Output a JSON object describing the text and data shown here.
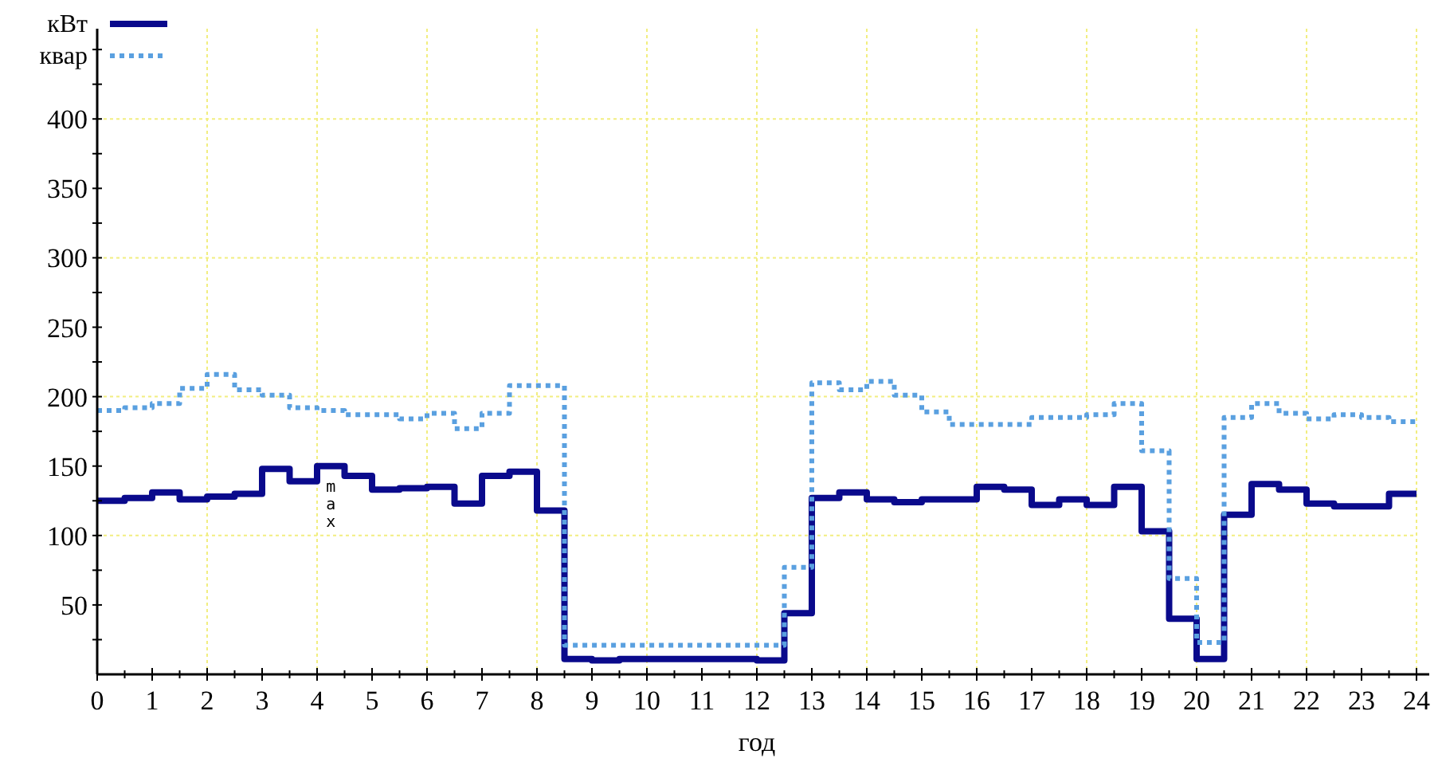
{
  "chart_data": {
    "type": "step",
    "xlabel": "год",
    "legend": "top left",
    "grid": true,
    "xlim": [
      0,
      24
    ],
    "ylim": [
      0,
      465
    ],
    "xticks": [
      0,
      {
        "value": 0.5,
        "label": null
      },
      1,
      {
        "value": 1.5,
        "label": null
      },
      2,
      {
        "value": 2.5,
        "label": null
      },
      3,
      {
        "value": 3.5,
        "label": null
      },
      4,
      {
        "value": 4.5,
        "label": null
      },
      5,
      {
        "value": 5.5,
        "label": null
      },
      6,
      {
        "value": 6.5,
        "label": null
      },
      7,
      {
        "value": 7.5,
        "label": null
      },
      8,
      {
        "value": 8.5,
        "label": null
      },
      9,
      {
        "value": 9.5,
        "label": null
      },
      10,
      {
        "value": 10.5,
        "label": null
      },
      11,
      {
        "value": 11.5,
        "label": null
      },
      12,
      {
        "value": 12.5,
        "label": null
      },
      13,
      {
        "value": 13.5,
        "label": null
      },
      14,
      {
        "value": 14.5,
        "label": null
      },
      15,
      {
        "value": 15.5,
        "label": null
      },
      16,
      {
        "value": 16.5,
        "label": null
      },
      17,
      {
        "value": 17.5,
        "label": null
      },
      18,
      {
        "value": 18.5,
        "label": null
      },
      19,
      {
        "value": 19.5,
        "label": null
      },
      20,
      {
        "value": 20.5,
        "label": null
      },
      21,
      {
        "value": 21.5,
        "label": null
      },
      22,
      {
        "value": 22.5,
        "label": null
      },
      23,
      {
        "value": 23.5,
        "label": null
      },
      24
    ],
    "yticks": [
      {
        "value": 25,
        "label": null
      },
      50,
      {
        "value": 75,
        "label": null
      },
      100,
      {
        "value": 125,
        "label": null
      },
      150,
      {
        "value": 175,
        "label": null
      },
      200,
      {
        "value": 225,
        "label": null
      },
      250,
      {
        "value": 275,
        "label": null
      },
      300,
      {
        "value": 325,
        "label": null
      },
      350,
      {
        "value": 375,
        "label": null
      },
      400,
      {
        "value": 425,
        "label": null
      },
      {
        "value": 450,
        "label": null
      }
    ],
    "x": [
      0,
      0.5,
      1,
      1.5,
      2,
      2.5,
      3,
      3.5,
      4,
      4.5,
      5,
      5.5,
      6,
      6.5,
      7,
      7.5,
      8,
      8.5,
      9,
      9.5,
      10,
      10.5,
      11,
      11.5,
      12,
      12.5,
      13,
      13.5,
      14,
      14.5,
      15,
      15.5,
      16,
      16.5,
      17,
      17.5,
      18,
      18.5,
      19,
      19.5,
      20,
      20.5,
      21,
      21.5,
      22,
      22.5,
      23,
      23.5,
      24
    ],
    "series": [
      {
        "name": "кВт",
        "color": "#0a0a8c",
        "line_style": "solid",
        "values": [
          125,
          127,
          131,
          126,
          128,
          130,
          148,
          139,
          150,
          143,
          133,
          134,
          135,
          123,
          143,
          146,
          118,
          11,
          10,
          11,
          11,
          11,
          11,
          11,
          10,
          44,
          127,
          131,
          126,
          124,
          126,
          126,
          135,
          133,
          122,
          126,
          122,
          135,
          103,
          40,
          11,
          115,
          137,
          133,
          123,
          121,
          121,
          130,
          130
        ]
      },
      {
        "name": "квар",
        "color": "#5aa0e0",
        "line_style": "dotted",
        "values": [
          190,
          192,
          195,
          206,
          216,
          205,
          201,
          192,
          190,
          187,
          187,
          184,
          188,
          177,
          188,
          208,
          208,
          21,
          21,
          21,
          21,
          21,
          21,
          21,
          21,
          77,
          210,
          205,
          211,
          201,
          189,
          180,
          180,
          180,
          185,
          185,
          187,
          195,
          161,
          69,
          23,
          185,
          195,
          188,
          184,
          187,
          185,
          182,
          182
        ]
      }
    ],
    "annotations": [
      {
        "text": "max",
        "x": 4.25,
        "y": 150
      }
    ]
  }
}
